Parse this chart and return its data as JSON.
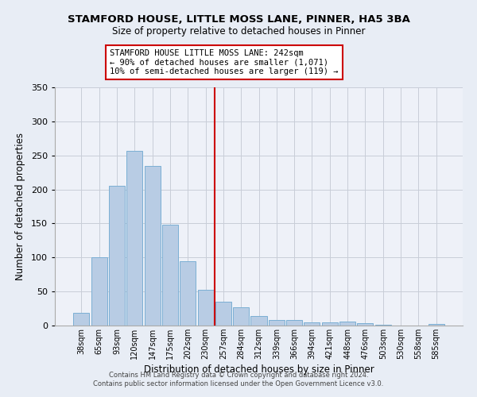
{
  "title": "STAMFORD HOUSE, LITTLE MOSS LANE, PINNER, HA5 3BA",
  "subtitle": "Size of property relative to detached houses in Pinner",
  "xlabel": "Distribution of detached houses by size in Pinner",
  "ylabel": "Number of detached properties",
  "bar_labels": [
    "38sqm",
    "65sqm",
    "93sqm",
    "120sqm",
    "147sqm",
    "175sqm",
    "202sqm",
    "230sqm",
    "257sqm",
    "284sqm",
    "312sqm",
    "339sqm",
    "366sqm",
    "394sqm",
    "421sqm",
    "448sqm",
    "476sqm",
    "503sqm",
    "530sqm",
    "558sqm",
    "585sqm"
  ],
  "bar_values": [
    19,
    100,
    205,
    257,
    235,
    148,
    94,
    52,
    35,
    27,
    14,
    8,
    8,
    5,
    5,
    6,
    3,
    1,
    0,
    0,
    2
  ],
  "bar_color": "#b8cce4",
  "bar_edgecolor": "#7bafd4",
  "vline_x_index": 8,
  "annotation_box_text": "STAMFORD HOUSE LITTLE MOSS LANE: 242sqm\n← 90% of detached houses are smaller (1,071)\n10% of semi-detached houses are larger (119) →",
  "vline_color": "#cc0000",
  "ylim": [
    0,
    350
  ],
  "yticks": [
    0,
    50,
    100,
    150,
    200,
    250,
    300,
    350
  ],
  "footer_line1": "Contains HM Land Registry data © Crown copyright and database right 2024.",
  "footer_line2": "Contains public sector information licensed under the Open Government Licence v3.0.",
  "bg_color": "#e8edf5",
  "plot_bg_color": "#eef1f8",
  "grid_color": "#c8cdd8"
}
